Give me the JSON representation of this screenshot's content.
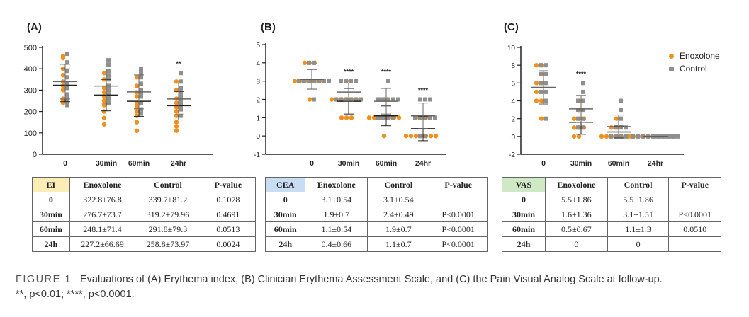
{
  "panels": {
    "a_label": "(A)",
    "b_label": "(B)",
    "c_label": "(C)"
  },
  "colors": {
    "enoxolone": "#F0901E",
    "control": "#8F8F8F",
    "table_a_head": "#FAEDB5",
    "table_b_head": "#C9DDF2",
    "table_c_head": "#CFE8C6"
  },
  "legend": {
    "enoxolone": "Enoxolone",
    "control": "Control"
  },
  "chart_data": [
    {
      "type": "scatter",
      "title": "(A)",
      "categories": [
        "0",
        "30min",
        "60min",
        "24hr"
      ],
      "ylim": [
        0,
        500
      ],
      "yticks": [
        0,
        100,
        200,
        300,
        400,
        500
      ],
      "significance": [
        "",
        "",
        "",
        "**"
      ],
      "series": [
        {
          "name": "Enoxolone",
          "means": [
            322.8,
            276.7,
            248.1,
            227.2
          ],
          "sd": [
            76.8,
            73.7,
            71.4,
            66.69
          ],
          "points": [
            [
              460,
              450,
              400,
              370,
              340,
              320,
              300,
              260,
              250,
              240
            ],
            [
              380,
              350,
              310,
              290,
              270,
              250,
              230,
              200,
              170,
              140
            ],
            [
              360,
              320,
              290,
              270,
              240,
              220,
              200,
              180,
              150,
              110
            ],
            [
              340,
              300,
              260,
              240,
              220,
              200,
              180,
              150,
              110,
              130
            ]
          ]
        },
        {
          "name": "Control",
          "means": [
            339.7,
            319.2,
            291.8,
            258.8
          ],
          "sd": [
            81.2,
            79.96,
            79.3,
            73.97
          ],
          "points": [
            [
              470,
              430,
              390,
              360,
              330,
              310,
              280,
              260,
              240,
              230
            ],
            [
              440,
              420,
              390,
              370,
              350,
              320,
              300,
              280,
              260,
              240
            ],
            [
              400,
              380,
              360,
              330,
              300,
              290,
              270,
              240,
              210,
              190
            ],
            [
              380,
              340,
              310,
              290,
              270,
              260,
              250,
              230,
              210,
              180
            ]
          ]
        }
      ]
    },
    {
      "type": "scatter",
      "title": "(B)",
      "categories": [
        "0",
        "30min",
        "60min",
        "24hr"
      ],
      "ylim": [
        -1,
        5
      ],
      "yticks": [
        -1,
        0,
        1,
        2,
        3,
        4,
        5
      ],
      "significance": [
        "",
        "****",
        "****",
        "****"
      ],
      "series": [
        {
          "name": "Enoxolone",
          "means": [
            3.1,
            1.9,
            1.1,
            0.4
          ],
          "sd": [
            0.54,
            0.7,
            0.54,
            0.66
          ],
          "points": [
            [
              4,
              4,
              4,
              3,
              3,
              3,
              3,
              3,
              2,
              3
            ],
            [
              3,
              2,
              2,
              2,
              2,
              1,
              1,
              1,
              2,
              2
            ],
            [
              2,
              1,
              1,
              1,
              1,
              1,
              0,
              1,
              1,
              2
            ],
            [
              1,
              0,
              0,
              0,
              0,
              0,
              0,
              1,
              0,
              1
            ]
          ]
        },
        {
          "name": "Control",
          "means": [
            3.1,
            2.4,
            1.9,
            1.1
          ],
          "sd": [
            0.54,
            0.49,
            0.7,
            0.7
          ],
          "points": [
            [
              4,
              3,
              3,
              3,
              3,
              3,
              3,
              3,
              2,
              4
            ],
            [
              3,
              3,
              3,
              2,
              2,
              2,
              2,
              3,
              2,
              2
            ],
            [
              3,
              2,
              2,
              2,
              2,
              1,
              1,
              1,
              1,
              2
            ],
            [
              2,
              2,
              1,
              1,
              1,
              1,
              0,
              0,
              1,
              2
            ]
          ]
        }
      ]
    },
    {
      "type": "scatter",
      "title": "(C)",
      "categories": [
        "0",
        "30min",
        "60min",
        "24hr"
      ],
      "ylim": [
        -2,
        10
      ],
      "yticks": [
        -2,
        0,
        2,
        4,
        6,
        8,
        10
      ],
      "significance": [
        "",
        "****",
        "",
        ""
      ],
      "legend_position": "top-right",
      "series": [
        {
          "name": "Enoxolone",
          "means": [
            5.5,
            1.6,
            0.5,
            0
          ],
          "sd": [
            1.86,
            1.36,
            0.67,
            0
          ],
          "points": [
            [
              8,
              8,
              7,
              6,
              6,
              5,
              5,
              4,
              4,
              2
            ],
            [
              4,
              3,
              2,
              2,
              2,
              1,
              1,
              1,
              0,
              0
            ],
            [
              2,
              1,
              1,
              0,
              0,
              0,
              0,
              0,
              0,
              0
            ],
            [
              0,
              0,
              0,
              0,
              0,
              0,
              0,
              0,
              0,
              0
            ]
          ]
        },
        {
          "name": "Control",
          "means": [
            5.5,
            3.1,
            1.1,
            0
          ],
          "sd": [
            1.86,
            1.51,
            1.3,
            0
          ],
          "points": [
            [
              8,
              8,
              7,
              7,
              6,
              6,
              5,
              5,
              4,
              2
            ],
            [
              6,
              5,
              4,
              4,
              3,
              3,
              2,
              2,
              1,
              1
            ],
            [
              4,
              3,
              2,
              1,
              1,
              1,
              0,
              0,
              0,
              0
            ],
            [
              0,
              0,
              0,
              0,
              0,
              0,
              0,
              0,
              0,
              0
            ]
          ]
        }
      ]
    }
  ],
  "tables": {
    "a": {
      "header": [
        "EI",
        "Enoxolone",
        "Control",
        "P-value"
      ],
      "rows": [
        [
          "0",
          "322.8±76.8",
          "339.7±81.2",
          "0.1078"
        ],
        [
          "30min",
          "276.7±73.7",
          "319.2±79.96",
          "0.4691"
        ],
        [
          "60min",
          "248.1±71.4",
          "291.8±79.3",
          "0.0513"
        ],
        [
          "24h",
          "227.2±66.69",
          "258.8±73.97",
          "0.0024"
        ]
      ]
    },
    "b": {
      "header": [
        "CEA",
        "Enoxolone",
        "Control",
        "P-value"
      ],
      "rows": [
        [
          "0",
          "3.1±0.54",
          "3.1±0.54",
          ""
        ],
        [
          "30min",
          "1.9±0.7",
          "2.4±0.49",
          "P<0.0001"
        ],
        [
          "60min",
          "1.1±0.54",
          "1.9±0.7",
          "P<0.0001"
        ],
        [
          "24h",
          "0.4±0.66",
          "1.1±0.7",
          "P<0.0001"
        ]
      ]
    },
    "c": {
      "header": [
        "VAS",
        "Enoxolone",
        "Control",
        "P-value"
      ],
      "rows": [
        [
          "0",
          "5.5±1.86",
          "5.5±1.86",
          ""
        ],
        [
          "30min",
          "1.6±1.36",
          "3.1±1.51",
          "P<0.0001"
        ],
        [
          "60min",
          "0.5±0.67",
          "1.1±1.3",
          "0.0510"
        ],
        [
          "24h",
          "0",
          "0",
          ""
        ]
      ]
    }
  },
  "caption": {
    "figure_label": "FIGURE 1",
    "text": "Evaluations of (A) Erythema index, (B) Clinician Erythema Assessment Scale, and (C) the Pain Visual Analog Scale at follow-up.",
    "footnote": "**, p<0.01; ****, p<0.0001."
  }
}
